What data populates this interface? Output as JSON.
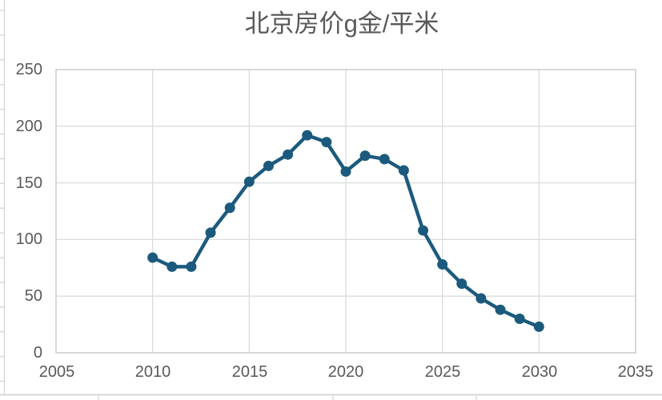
{
  "chart_data": {
    "type": "line",
    "title": "北京房价g金/平米",
    "x": [
      2010,
      2011,
      2012,
      2013,
      2014,
      2015,
      2016,
      2017,
      2018,
      2019,
      2020,
      2021,
      2022,
      2023,
      2024,
      2025,
      2026,
      2027,
      2028,
      2029,
      2030
    ],
    "values": [
      84,
      76,
      76,
      106,
      128,
      151,
      165,
      175,
      192,
      186,
      160,
      174,
      171,
      161,
      108,
      78,
      61,
      48,
      38,
      30,
      23
    ],
    "xlim": [
      2005,
      2035
    ],
    "ylim": [
      0,
      250
    ],
    "x_ticks": [
      "2005",
      "2010",
      "2015",
      "2020",
      "2025",
      "2030",
      "2035"
    ],
    "y_ticks": [
      "0",
      "50",
      "100",
      "150",
      "200",
      "250"
    ],
    "grid": true,
    "legend": "none",
    "line_color": "#1B5A7D",
    "marker": "circle"
  },
  "colors": {
    "series": "#1B5A7D",
    "gridline": "#DCDCDC",
    "plot_border": "#CFCFCF",
    "axis_text": "#595959",
    "spreadsheet_line": "#D8D8D8"
  }
}
